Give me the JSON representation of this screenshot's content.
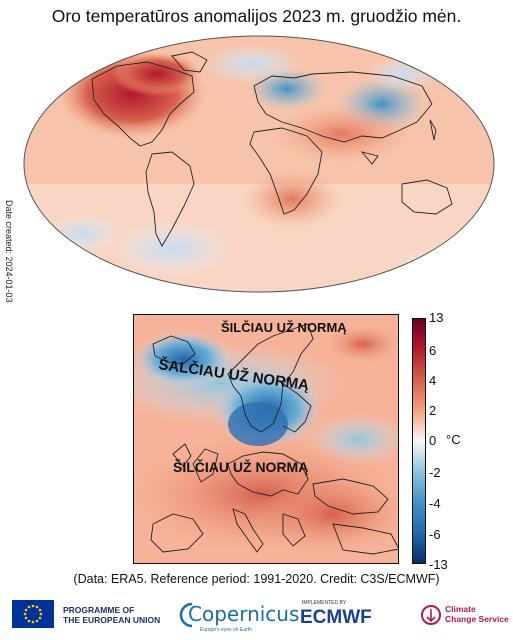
{
  "title": "Oro temperatūros anomalijos 2023 m. gruodžio mėn.",
  "date_created": "Date created: 2024-01-03",
  "inset_labels": {
    "north": "ŠILČIAU UŽ NORMĄ",
    "middle": "ŠALČIAU UŽ NORMĄ",
    "south": "ŠILČIAU UŽ NORMĄ"
  },
  "colorbar": {
    "ticks": [
      "13",
      "6",
      "4",
      "2",
      "0",
      "-2",
      "-4",
      "-6",
      "-13"
    ],
    "unit": "°C"
  },
  "credit": "(Data: ERA5. Reference period: 1991-2020. Credit: C3S/ECMWF)",
  "footer": {
    "programme_line1": "PROGRAMME OF",
    "programme_line2": "THE EUROPEAN UNION",
    "copernicus": "Copernicus",
    "copernicus_sub": "Europe's eyes on Earth",
    "implemented_by": "IMPLEMENTED BY",
    "ecmwf": "ECMWF",
    "c3s_line1": "Climate",
    "c3s_line2": "Change Service"
  },
  "colors": {
    "warm_strong": "#b2182b",
    "warm": "#ef8a62",
    "warm_light": "#fbd0b9",
    "neutral": "#f7f7f7",
    "cool_light": "#c6dbef",
    "cool": "#6baed6",
    "cool_strong": "#2166ac"
  }
}
